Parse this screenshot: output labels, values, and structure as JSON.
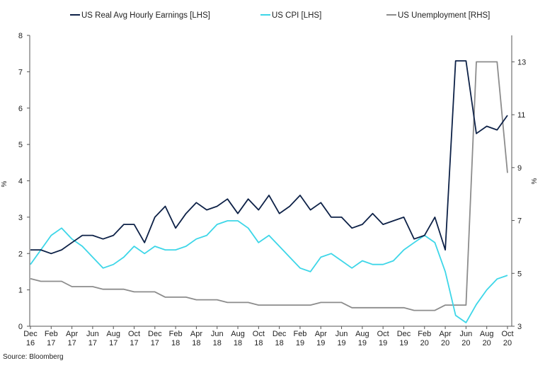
{
  "chart_data": {
    "type": "line",
    "title": "",
    "source": "Source: Bloomberg",
    "left_axis": {
      "label": "%",
      "range": [
        0,
        8
      ],
      "ticks": [
        "0",
        "1",
        "2",
        "3",
        "4",
        "5",
        "6",
        "7",
        "8"
      ]
    },
    "right_axis": {
      "label": "%",
      "range": [
        3,
        14
      ],
      "ticks": [
        "3",
        "5",
        "7",
        "9",
        "11",
        "13"
      ]
    },
    "x_tick_labels": [
      [
        "Dec",
        "16"
      ],
      [
        "Feb",
        "17"
      ],
      [
        "Apr",
        "17"
      ],
      [
        "Jun",
        "17"
      ],
      [
        "Aug",
        "17"
      ],
      [
        "Oct",
        "17"
      ],
      [
        "Dec",
        "17"
      ],
      [
        "Feb",
        "18"
      ],
      [
        "Apr",
        "18"
      ],
      [
        "Jun",
        "18"
      ],
      [
        "Aug",
        "18"
      ],
      [
        "Oct",
        "18"
      ],
      [
        "Dec",
        "18"
      ],
      [
        "Feb",
        "19"
      ],
      [
        "Apr",
        "19"
      ],
      [
        "Jun",
        "19"
      ],
      [
        "Aug",
        "19"
      ],
      [
        "Oct",
        "19"
      ],
      [
        "Dec",
        "19"
      ],
      [
        "Feb",
        "20"
      ],
      [
        "Apr",
        "20"
      ],
      [
        "Jun",
        "20"
      ],
      [
        "Aug",
        "20"
      ],
      [
        "Oct",
        "20"
      ]
    ],
    "months": 47,
    "series": [
      {
        "name": "US Real Avg Hourly Earnings [LHS]",
        "axis": "left",
        "color": "#0d2147",
        "values": [
          2.1,
          2.1,
          2.0,
          2.1,
          2.3,
          2.5,
          2.5,
          2.4,
          2.5,
          2.8,
          2.8,
          2.3,
          3.0,
          3.3,
          2.7,
          3.1,
          3.4,
          3.2,
          3.3,
          3.5,
          3.1,
          3.5,
          3.2,
          3.6,
          3.1,
          3.3,
          3.6,
          3.2,
          3.4,
          3.0,
          3.0,
          2.7,
          2.8,
          3.1,
          2.8,
          2.9,
          3.0,
          2.4,
          2.5,
          3.0,
          2.1,
          7.3,
          7.3,
          5.3,
          5.5,
          5.4,
          5.8
        ]
      },
      {
        "name": "US CPI [LHS]",
        "axis": "left",
        "color": "#3dd6e8",
        "values": [
          1.7,
          2.1,
          2.5,
          2.7,
          2.4,
          2.2,
          1.9,
          1.6,
          1.7,
          1.9,
          2.2,
          2.0,
          2.2,
          2.1,
          2.1,
          2.2,
          2.4,
          2.5,
          2.8,
          2.9,
          2.9,
          2.7,
          2.3,
          2.5,
          2.2,
          1.9,
          1.6,
          1.5,
          1.9,
          2.0,
          1.8,
          1.6,
          1.8,
          1.7,
          1.7,
          1.8,
          2.1,
          2.3,
          2.5,
          2.3,
          1.5,
          0.3,
          0.1,
          0.6,
          1.0,
          1.3,
          1.4
        ]
      },
      {
        "name": "US Unemployment [RHS]",
        "axis": "right",
        "color": "#8c8c8c",
        "values": [
          4.8,
          4.7,
          4.7,
          4.7,
          4.5,
          4.5,
          4.5,
          4.4,
          4.4,
          4.4,
          4.3,
          4.3,
          4.3,
          4.1,
          4.1,
          4.1,
          4.0,
          4.0,
          4.0,
          3.9,
          3.9,
          3.9,
          3.8,
          3.8,
          3.8,
          3.8,
          3.8,
          3.8,
          3.9,
          3.9,
          3.9,
          3.7,
          3.7,
          3.7,
          3.7,
          3.7,
          3.7,
          3.6,
          3.6,
          3.6,
          3.8,
          3.8,
          3.8,
          13.0,
          13.0,
          13.0,
          8.8
        ]
      }
    ],
    "legend_position": "top",
    "grid": false
  }
}
